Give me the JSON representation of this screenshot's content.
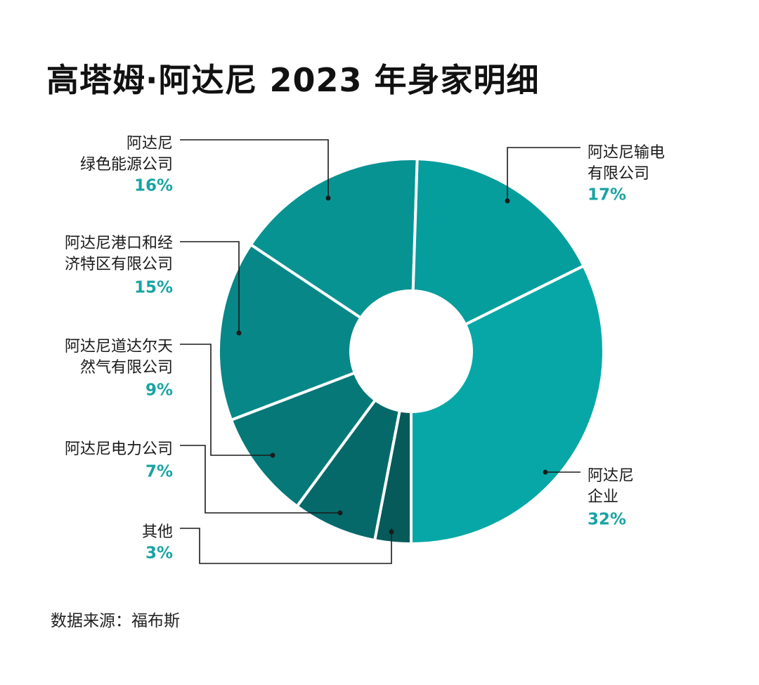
{
  "page": {
    "title": "高塔姆·阿达尼 2023 年身家明细",
    "source": "数据来源：福布斯"
  },
  "chart_data": {
    "type": "pie",
    "title": "高塔姆·阿达尼 2023 年身家明细",
    "donut": true,
    "unit": "%",
    "slices": [
      {
        "name": "阿达尼企业",
        "label_lines": [
          "阿达尼",
          "企业"
        ],
        "value": 32,
        "pct_label": "32%",
        "color": "#07a7a7"
      },
      {
        "name": "其他",
        "label_lines": [
          "其他"
        ],
        "value": 3,
        "pct_label": "3%",
        "color": "#065a5a"
      },
      {
        "name": "阿达尼电力公司",
        "label_lines": [
          "阿达尼电力公司"
        ],
        "value": 7,
        "pct_label": "7%",
        "color": "#056969"
      },
      {
        "name": "阿达尼道达尔天然气有限公司",
        "label_lines": [
          "阿达尼道达尔天",
          "然气有限公司"
        ],
        "value": 9,
        "pct_label": "9%",
        "color": "#067878"
      },
      {
        "name": "阿达尼港口和经济特区有限公司",
        "label_lines": [
          "阿达尼港口和经",
          "济特区有限公司"
        ],
        "value": 15,
        "pct_label": "15%",
        "color": "#078787"
      },
      {
        "name": "阿达尼绿色能源公司",
        "label_lines": [
          "阿达尼",
          "绿色能源公司"
        ],
        "value": 16,
        "pct_label": "16%",
        "color": "#089393"
      },
      {
        "name": "阿达尼输电有限公司",
        "label_lines": [
          "阿达尼输电",
          "有限公司"
        ],
        "value": 17,
        "pct_label": "17%",
        "color": "#069d9d"
      }
    ],
    "legend": "none"
  }
}
